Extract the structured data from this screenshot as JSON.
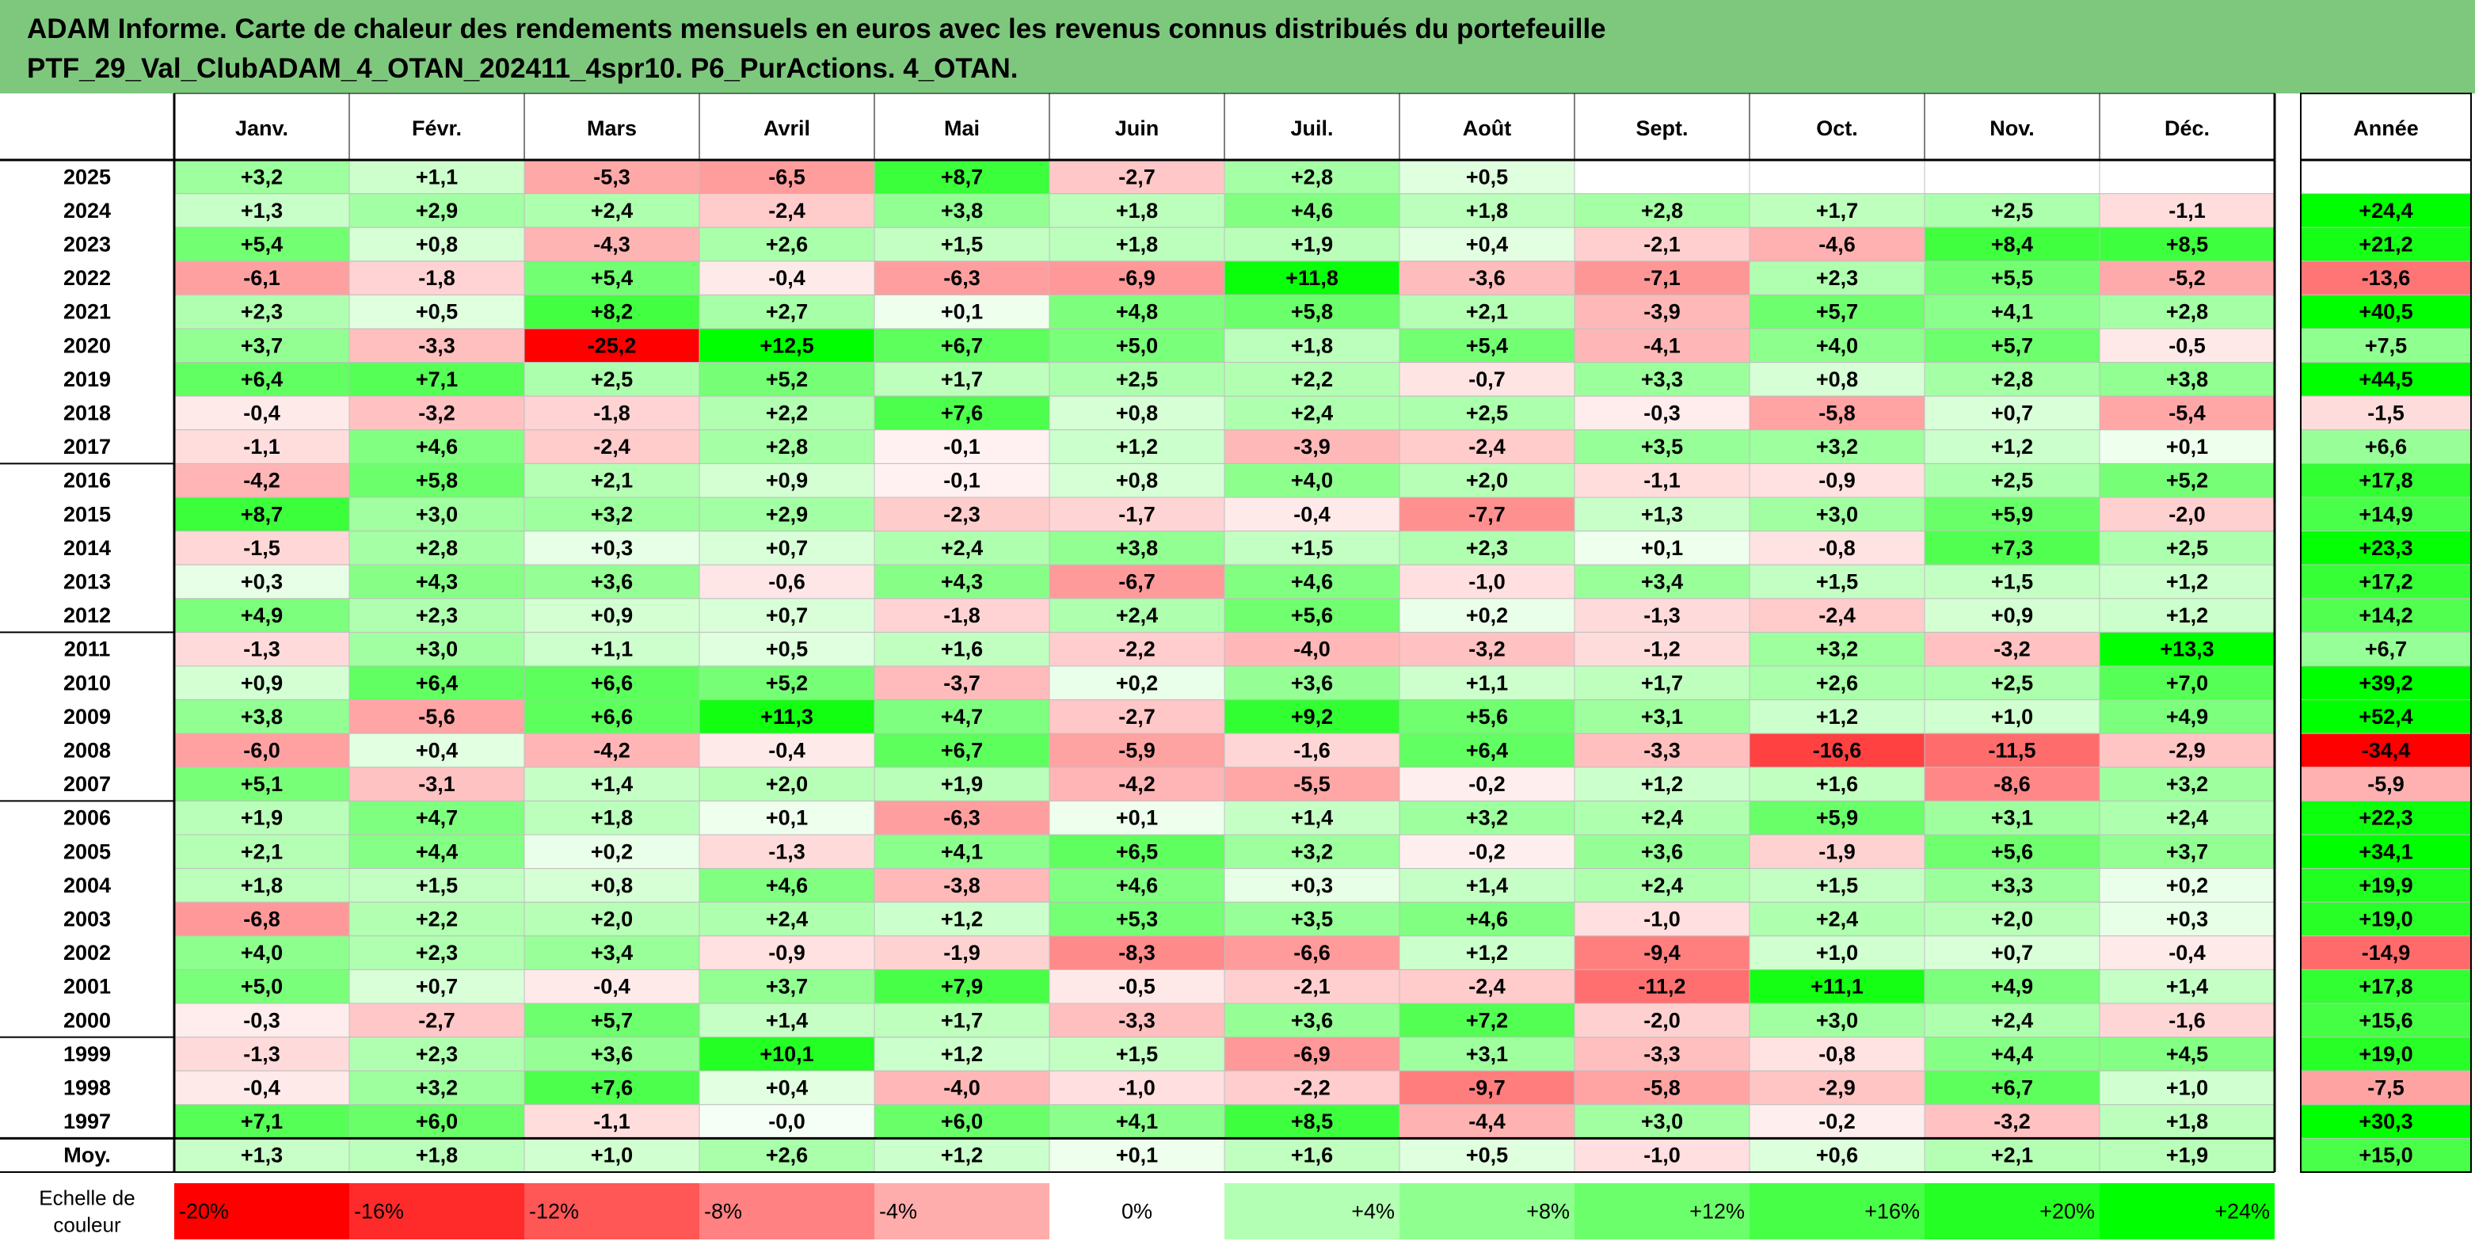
{
  "title_lines": [
    "ADAM Informe. Carte de chaleur des rendements mensuels en euros avec les revenus connus distribués du portefeuille",
    "PTF_29_Val_ClubADAM_4_OTAN_202411_4spr10. P6_PurActions. 4_OTAN."
  ],
  "chart_data": {
    "type": "heatmap",
    "title": "ADAM Informe. Carte de chaleur des rendements mensuels en euros avec les revenus connus distribués du portefeuille PTF_29_Val_ClubADAM_4_OTAN_202411_4spr10. P6_PurActions. 4_OTAN.",
    "months": [
      "Janv.",
      "Févr.",
      "Mars",
      "Avril",
      "Mai",
      "Juin",
      "Juil.",
      "Août",
      "Sept.",
      "Oct.",
      "Nov.",
      "Déc."
    ],
    "year_header": "Année",
    "rows": [
      {
        "year": "2025",
        "values": [
          3.2,
          1.1,
          -5.3,
          -6.5,
          8.7,
          -2.7,
          2.8,
          0.5,
          null,
          null,
          null,
          null
        ],
        "annual": null
      },
      {
        "year": "2024",
        "values": [
          1.3,
          2.9,
          2.4,
          -2.4,
          3.8,
          1.8,
          4.6,
          1.8,
          2.8,
          1.7,
          2.5,
          -1.1
        ],
        "annual": 24.4
      },
      {
        "year": "2023",
        "values": [
          5.4,
          0.8,
          -4.3,
          2.6,
          1.5,
          1.8,
          1.9,
          0.4,
          -2.1,
          -4.6,
          8.4,
          8.5
        ],
        "annual": 21.2
      },
      {
        "year": "2022",
        "values": [
          -6.1,
          -1.8,
          5.4,
          -0.4,
          -6.3,
          -6.9,
          11.8,
          -3.6,
          -7.1,
          2.3,
          5.5,
          -5.2
        ],
        "annual": -13.6
      },
      {
        "year": "2021",
        "values": [
          2.3,
          0.5,
          8.2,
          2.7,
          0.1,
          4.8,
          5.8,
          2.1,
          -3.9,
          5.7,
          4.1,
          2.8
        ],
        "annual": 40.5
      },
      {
        "year": "2020",
        "values": [
          3.7,
          -3.3,
          -25.2,
          12.5,
          6.7,
          5.0,
          1.8,
          5.4,
          -4.1,
          4.0,
          5.7,
          -0.5
        ],
        "annual": 7.5
      },
      {
        "year": "2019",
        "values": [
          6.4,
          7.1,
          2.5,
          5.2,
          1.7,
          2.5,
          2.2,
          -0.7,
          3.3,
          0.8,
          2.8,
          3.8
        ],
        "annual": 44.5
      },
      {
        "year": "2018",
        "values": [
          -0.4,
          -3.2,
          -1.8,
          2.2,
          7.6,
          0.8,
          2.4,
          2.5,
          -0.3,
          -5.8,
          0.7,
          -5.4
        ],
        "annual": -1.5
      },
      {
        "year": "2017",
        "values": [
          -1.1,
          4.6,
          -2.4,
          2.8,
          -0.1,
          1.2,
          -3.9,
          -2.4,
          3.5,
          3.2,
          1.2,
          0.1
        ],
        "annual": 6.6
      },
      {
        "year": "2016",
        "values": [
          -4.2,
          5.8,
          2.1,
          0.9,
          -0.1,
          0.8,
          4.0,
          2.0,
          -1.1,
          -0.9,
          2.5,
          5.2
        ],
        "annual": 17.8
      },
      {
        "year": "2015",
        "values": [
          8.7,
          3.0,
          3.2,
          2.9,
          -2.3,
          -1.7,
          -0.4,
          -7.7,
          1.3,
          3.0,
          5.9,
          -2.0
        ],
        "annual": 14.9
      },
      {
        "year": "2014",
        "values": [
          -1.5,
          2.8,
          0.3,
          0.7,
          2.4,
          3.8,
          1.5,
          2.3,
          0.1,
          -0.8,
          7.3,
          2.5
        ],
        "annual": 23.3
      },
      {
        "year": "2013",
        "values": [
          0.3,
          4.3,
          3.6,
          -0.6,
          4.3,
          -6.7,
          4.6,
          -1.0,
          3.4,
          1.5,
          1.5,
          1.2
        ],
        "annual": 17.2
      },
      {
        "year": "2012",
        "values": [
          4.9,
          2.3,
          0.9,
          0.7,
          -1.8,
          2.4,
          5.6,
          0.2,
          -1.3,
          -2.4,
          0.9,
          1.2
        ],
        "annual": 14.2
      },
      {
        "year": "2011",
        "values": [
          -1.3,
          3.0,
          1.1,
          0.5,
          1.6,
          -2.2,
          -4.0,
          -3.2,
          -1.2,
          3.2,
          -3.2,
          13.3
        ],
        "annual": 6.7
      },
      {
        "year": "2010",
        "values": [
          0.9,
          6.4,
          6.6,
          5.2,
          -3.7,
          0.2,
          3.6,
          1.1,
          1.7,
          2.6,
          2.5,
          7.0
        ],
        "annual": 39.2
      },
      {
        "year": "2009",
        "values": [
          3.8,
          -5.6,
          6.6,
          11.3,
          4.7,
          -2.7,
          9.2,
          5.6,
          3.1,
          1.2,
          1.0,
          4.9
        ],
        "annual": 52.4
      },
      {
        "year": "2008",
        "values": [
          -6.0,
          0.4,
          -4.2,
          -0.4,
          6.7,
          -5.9,
          -1.6,
          6.4,
          -3.3,
          -16.6,
          -11.5,
          -2.9
        ],
        "annual": -34.4
      },
      {
        "year": "2007",
        "values": [
          5.1,
          -3.1,
          1.4,
          2.0,
          1.9,
          -4.2,
          -5.5,
          -0.2,
          1.2,
          1.6,
          -8.6,
          3.2
        ],
        "annual": -5.9
      },
      {
        "year": "2006",
        "values": [
          1.9,
          4.7,
          1.8,
          0.1,
          -6.3,
          0.1,
          1.4,
          3.2,
          2.4,
          5.9,
          3.1,
          2.4
        ],
        "annual": 22.3
      },
      {
        "year": "2005",
        "values": [
          2.1,
          4.4,
          0.2,
          -1.3,
          4.1,
          6.5,
          3.2,
          -0.2,
          3.6,
          -1.9,
          5.6,
          3.7
        ],
        "annual": 34.1
      },
      {
        "year": "2004",
        "values": [
          1.8,
          1.5,
          0.8,
          4.6,
          -3.8,
          4.6,
          0.3,
          1.4,
          2.4,
          1.5,
          3.3,
          0.2
        ],
        "annual": 19.9
      },
      {
        "year": "2003",
        "values": [
          -6.8,
          2.2,
          2.0,
          2.4,
          1.2,
          5.3,
          3.5,
          4.6,
          -1.0,
          2.4,
          2.0,
          0.3
        ],
        "annual": 19.0
      },
      {
        "year": "2002",
        "values": [
          4.0,
          2.3,
          3.4,
          -0.9,
          -1.9,
          -8.3,
          -6.6,
          1.2,
          -9.4,
          1.0,
          0.7,
          -0.4
        ],
        "annual": -14.9
      },
      {
        "year": "2001",
        "values": [
          5.0,
          0.7,
          -0.4,
          3.7,
          7.9,
          -0.5,
          -2.1,
          -2.4,
          -11.2,
          11.1,
          4.9,
          1.4
        ],
        "annual": 17.8
      },
      {
        "year": "2000",
        "values": [
          -0.3,
          -2.7,
          5.7,
          1.4,
          1.7,
          -3.3,
          3.6,
          7.2,
          -2.0,
          3.0,
          2.4,
          -1.6
        ],
        "annual": 15.6
      },
      {
        "year": "1999",
        "values": [
          -1.3,
          2.3,
          3.6,
          10.1,
          1.2,
          1.5,
          -6.9,
          3.1,
          -3.3,
          -0.8,
          4.4,
          4.5
        ],
        "annual": 19.0
      },
      {
        "year": "1998",
        "values": [
          -0.4,
          3.2,
          7.6,
          0.4,
          -4.0,
          -1.0,
          -2.2,
          -9.7,
          -5.8,
          -2.9,
          6.7,
          1.0
        ],
        "annual": -7.5
      },
      {
        "year": "1997",
        "values": [
          7.1,
          6.0,
          -1.1,
          -0.0,
          6.0,
          4.1,
          8.5,
          -4.4,
          3.0,
          -0.2,
          -3.2,
          1.8
        ],
        "annual": 30.3
      }
    ],
    "average": {
      "label": "Moy.",
      "values": [
        1.3,
        1.8,
        1.0,
        2.6,
        1.2,
        0.1,
        1.6,
        0.5,
        -1.0,
        0.6,
        2.1,
        1.9
      ],
      "annual": 15.0
    },
    "scale_label": "Echelle de couleur",
    "scale": [
      {
        "label": "-20%",
        "value": -20
      },
      {
        "label": "-16%",
        "value": -16
      },
      {
        "label": "-12%",
        "value": -12
      },
      {
        "label": "-8%",
        "value": -8
      },
      {
        "label": "-4%",
        "value": -4
      },
      {
        "label": "0%",
        "value": 0
      },
      {
        "label": "+4%",
        "value": 4
      },
      {
        "label": "+8%",
        "value": 8
      },
      {
        "label": "+12%",
        "value": 12
      },
      {
        "label": "+16%",
        "value": 16
      },
      {
        "label": "+20%",
        "value": 20
      },
      {
        "label": "+24%",
        "value": 24
      }
    ],
    "colors": {
      "negative": "#ff0000",
      "positive": "#00ff00",
      "neutral": "#ffffff",
      "title_background": "#7ec87e"
    }
  }
}
